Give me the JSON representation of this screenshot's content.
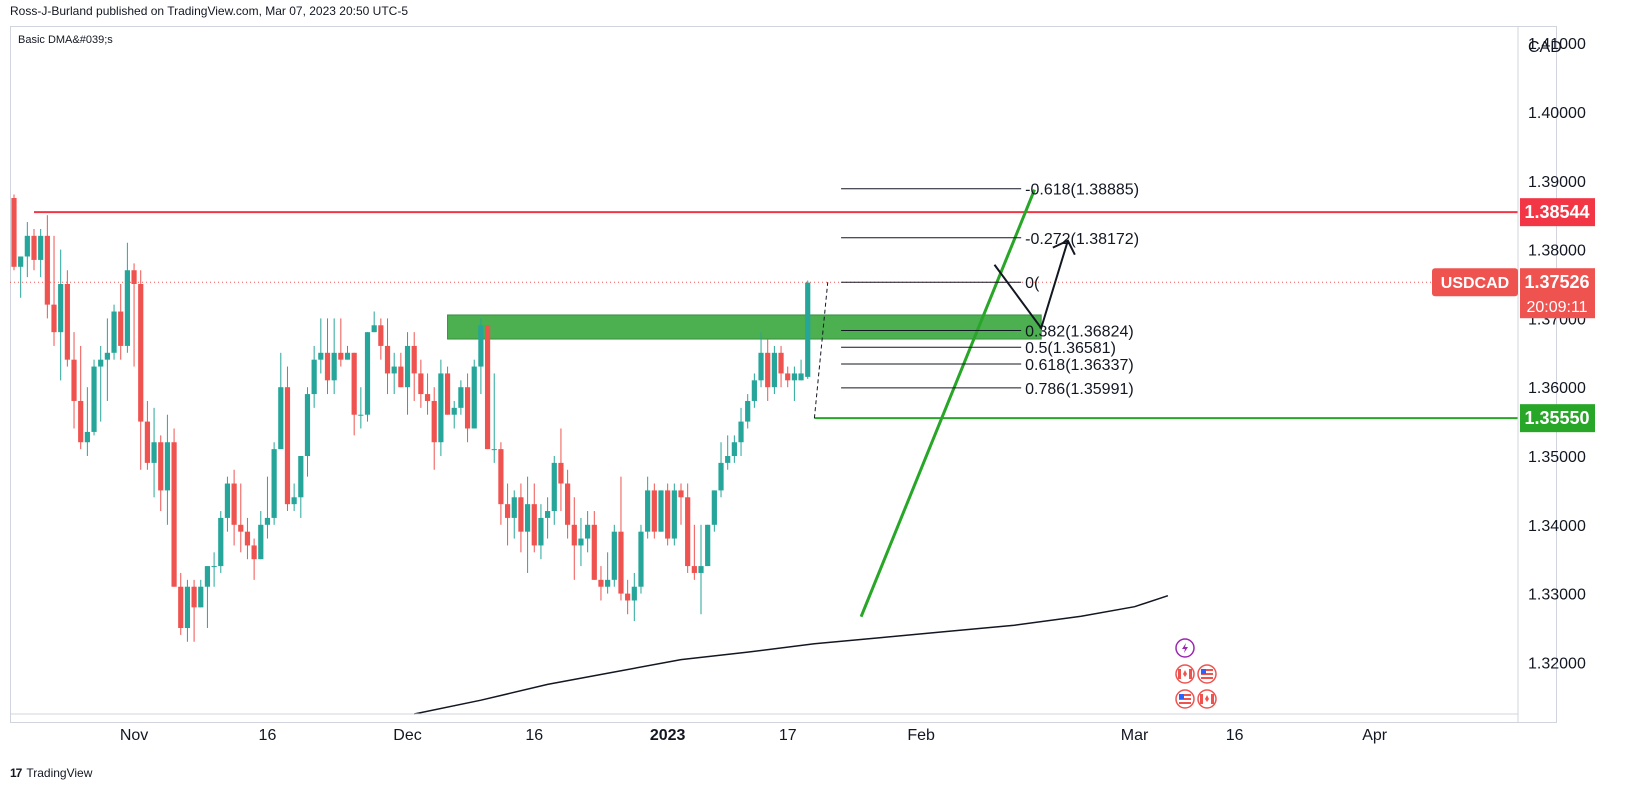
{
  "header": {
    "published_by": "Ross-J-Burland published on TradingView.com, Mar 07, 2023 20:50 UTC-5",
    "indicator": "Basic DMA&#039;s"
  },
  "footer": {
    "brand": "TradingView",
    "logo": "17"
  },
  "colors": {
    "bull": "#26a69a",
    "bear": "#ef5350",
    "resistance": "#f23645",
    "support": "#27a627",
    "zone": "#4caf50",
    "fib": "#131722",
    "dma": "#131722"
  },
  "chart_data": {
    "type": "candlestick",
    "symbol": "USDCAD",
    "currency": "CAD",
    "ylim": [
      1.3125,
      1.4125
    ],
    "y_ticks": [
      "1.41000",
      "1.40000",
      "1.39000",
      "1.38000",
      "1.37000",
      "1.36000",
      "1.35000",
      "1.34000",
      "1.33000",
      "1.32000"
    ],
    "x_ticks": [
      "Nov",
      "16",
      "Dec",
      "16",
      "2023",
      "17",
      "Feb",
      "Mar",
      "16",
      "Apr"
    ],
    "x_tick_index": [
      18,
      38,
      59,
      78,
      98,
      116,
      136,
      168,
      183,
      204
    ],
    "candles": [
      [
        1.3875,
        1.388,
        1.377,
        1.3775
      ],
      [
        1.3775,
        1.379,
        1.373,
        1.379
      ],
      [
        1.379,
        1.384,
        1.376,
        1.382
      ],
      [
        1.382,
        1.383,
        1.377,
        1.3785
      ],
      [
        1.3785,
        1.383,
        1.376,
        1.382
      ],
      [
        1.382,
        1.385,
        1.37,
        1.372
      ],
      [
        1.372,
        1.382,
        1.366,
        1.368
      ],
      [
        1.368,
        1.38,
        1.361,
        1.375
      ],
      [
        1.375,
        1.377,
        1.363,
        1.364
      ],
      [
        1.364,
        1.368,
        1.354,
        1.358
      ],
      [
        1.358,
        1.366,
        1.351,
        1.352
      ],
      [
        1.352,
        1.36,
        1.35,
        1.3535
      ],
      [
        1.3535,
        1.364,
        1.353,
        1.363
      ],
      [
        1.363,
        1.366,
        1.355,
        1.364
      ],
      [
        1.364,
        1.37,
        1.358,
        1.365
      ],
      [
        1.365,
        1.372,
        1.364,
        1.371
      ],
      [
        1.371,
        1.375,
        1.364,
        1.366
      ],
      [
        1.366,
        1.381,
        1.365,
        1.377
      ],
      [
        1.377,
        1.378,
        1.363,
        1.375
      ],
      [
        1.375,
        1.377,
        1.348,
        1.355
      ],
      [
        1.355,
        1.358,
        1.348,
        1.349
      ],
      [
        1.349,
        1.357,
        1.344,
        1.352
      ],
      [
        1.352,
        1.353,
        1.342,
        1.345
      ],
      [
        1.345,
        1.356,
        1.34,
        1.352
      ],
      [
        1.352,
        1.354,
        1.331,
        1.331
      ],
      [
        1.331,
        1.333,
        1.324,
        1.325
      ],
      [
        1.325,
        1.332,
        1.323,
        1.331
      ],
      [
        1.331,
        1.332,
        1.323,
        1.328
      ],
      [
        1.328,
        1.332,
        1.328,
        1.331
      ],
      [
        1.331,
        1.334,
        1.325,
        1.334
      ],
      [
        1.334,
        1.336,
        1.331,
        1.334
      ],
      [
        1.334,
        1.342,
        1.333,
        1.341
      ],
      [
        1.341,
        1.347,
        1.339,
        1.346
      ],
      [
        1.346,
        1.348,
        1.337,
        1.34
      ],
      [
        1.34,
        1.346,
        1.336,
        1.339
      ],
      [
        1.339,
        1.341,
        1.335,
        1.337
      ],
      [
        1.337,
        1.338,
        1.332,
        1.335
      ],
      [
        1.335,
        1.342,
        1.335,
        1.34
      ],
      [
        1.34,
        1.347,
        1.338,
        1.341
      ],
      [
        1.341,
        1.352,
        1.34,
        1.351
      ],
      [
        1.351,
        1.365,
        1.351,
        1.36
      ],
      [
        1.36,
        1.363,
        1.342,
        1.343
      ],
      [
        1.343,
        1.346,
        1.342,
        1.344
      ],
      [
        1.344,
        1.35,
        1.341,
        1.35
      ],
      [
        1.35,
        1.36,
        1.347,
        1.359
      ],
      [
        1.359,
        1.366,
        1.357,
        1.364
      ],
      [
        1.364,
        1.37,
        1.362,
        1.365
      ],
      [
        1.365,
        1.37,
        1.359,
        1.361
      ],
      [
        1.361,
        1.37,
        1.359,
        1.365
      ],
      [
        1.365,
        1.37,
        1.363,
        1.364
      ],
      [
        1.364,
        1.366,
        1.364,
        1.365
      ],
      [
        1.365,
        1.365,
        1.353,
        1.356
      ],
      [
        1.356,
        1.36,
        1.354,
        1.356
      ],
      [
        1.356,
        1.368,
        1.355,
        1.368
      ],
      [
        1.368,
        1.371,
        1.368,
        1.369
      ],
      [
        1.369,
        1.37,
        1.364,
        1.366
      ],
      [
        1.366,
        1.37,
        1.359,
        1.362
      ],
      [
        1.362,
        1.365,
        1.359,
        1.363
      ],
      [
        1.363,
        1.365,
        1.36,
        1.36
      ],
      [
        1.36,
        1.368,
        1.356,
        1.366
      ],
      [
        1.366,
        1.368,
        1.358,
        1.362
      ],
      [
        1.362,
        1.364,
        1.357,
        1.359
      ],
      [
        1.359,
        1.362,
        1.356,
        1.358
      ],
      [
        1.358,
        1.36,
        1.348,
        1.352
      ],
      [
        1.352,
        1.364,
        1.35,
        1.362
      ],
      [
        1.362,
        1.363,
        1.356,
        1.356
      ],
      [
        1.356,
        1.358,
        1.354,
        1.357
      ],
      [
        1.357,
        1.361,
        1.356,
        1.36
      ],
      [
        1.36,
        1.362,
        1.352,
        1.354
      ],
      [
        1.354,
        1.364,
        1.354,
        1.363
      ],
      [
        1.363,
        1.37,
        1.359,
        1.369
      ],
      [
        1.369,
        1.369,
        1.351,
        1.351
      ],
      [
        1.351,
        1.362,
        1.349,
        1.351
      ],
      [
        1.351,
        1.352,
        1.34,
        1.343
      ],
      [
        1.343,
        1.346,
        1.337,
        1.341
      ],
      [
        1.341,
        1.345,
        1.338,
        1.344
      ],
      [
        1.344,
        1.346,
        1.336,
        1.339
      ],
      [
        1.339,
        1.347,
        1.333,
        1.343
      ],
      [
        1.343,
        1.346,
        1.336,
        1.337
      ],
      [
        1.337,
        1.343,
        1.335,
        1.341
      ],
      [
        1.341,
        1.344,
        1.338,
        1.342
      ],
      [
        1.342,
        1.35,
        1.34,
        1.349
      ],
      [
        1.349,
        1.354,
        1.342,
        1.346
      ],
      [
        1.346,
        1.348,
        1.338,
        1.34
      ],
      [
        1.34,
        1.344,
        1.332,
        1.337
      ],
      [
        1.337,
        1.341,
        1.334,
        1.338
      ],
      [
        1.338,
        1.342,
        1.336,
        1.34
      ],
      [
        1.34,
        1.342,
        1.332,
        1.332
      ],
      [
        1.332,
        1.334,
        1.329,
        1.331
      ],
      [
        1.331,
        1.336,
        1.33,
        1.332
      ],
      [
        1.332,
        1.34,
        1.331,
        1.339
      ],
      [
        1.339,
        1.347,
        1.329,
        1.33
      ],
      [
        1.33,
        1.332,
        1.327,
        1.329
      ],
      [
        1.329,
        1.333,
        1.326,
        1.331
      ],
      [
        1.331,
        1.34,
        1.33,
        1.339
      ],
      [
        1.339,
        1.347,
        1.338,
        1.345
      ],
      [
        1.345,
        1.346,
        1.338,
        1.339
      ],
      [
        1.339,
        1.345,
        1.339,
        1.345
      ],
      [
        1.345,
        1.346,
        1.337,
        1.338
      ],
      [
        1.338,
        1.346,
        1.337,
        1.345
      ],
      [
        1.345,
        1.346,
        1.34,
        1.344
      ],
      [
        1.344,
        1.346,
        1.333,
        1.334
      ],
      [
        1.334,
        1.34,
        1.332,
        1.333
      ],
      [
        1.333,
        1.34,
        1.327,
        1.334
      ],
      [
        1.334,
        1.34,
        1.334,
        1.34
      ],
      [
        1.34,
        1.345,
        1.339,
        1.345
      ],
      [
        1.345,
        1.352,
        1.344,
        1.349
      ],
      [
        1.349,
        1.353,
        1.348,
        1.35
      ],
      [
        1.35,
        1.353,
        1.349,
        1.352
      ],
      [
        1.352,
        1.357,
        1.35,
        1.355
      ],
      [
        1.355,
        1.359,
        1.354,
        1.358
      ],
      [
        1.358,
        1.362,
        1.357,
        1.361
      ],
      [
        1.361,
        1.368,
        1.36,
        1.365
      ],
      [
        1.365,
        1.367,
        1.358,
        1.36
      ],
      [
        1.36,
        1.366,
        1.359,
        1.365
      ],
      [
        1.365,
        1.366,
        1.36,
        1.362
      ],
      [
        1.362,
        1.363,
        1.36,
        1.361
      ],
      [
        1.361,
        1.363,
        1.358,
        1.362
      ],
      [
        1.361,
        1.364,
        1.361,
        1.362
      ],
      [
        1.3615,
        1.3755,
        1.3612,
        1.3752
      ]
    ],
    "dma": [
      [
        60,
        1.3125
      ],
      [
        70,
        1.3145
      ],
      [
        80,
        1.3168
      ],
      [
        90,
        1.3186
      ],
      [
        100,
        1.3204
      ],
      [
        110,
        1.3215
      ],
      [
        120,
        1.3227
      ],
      [
        130,
        1.3236
      ],
      [
        140,
        1.3245
      ],
      [
        150,
        1.3254
      ],
      [
        160,
        1.3267
      ],
      [
        168,
        1.3281
      ],
      [
        173,
        1.3297
      ]
    ],
    "resistance": {
      "price": 1.38544,
      "label": "1.38544",
      "start_index": 3
    },
    "support": {
      "price": 1.3555,
      "label": "1.35550",
      "start_index": 120
    },
    "zone": {
      "high": 1.3705,
      "low": 1.367,
      "start_index": 65,
      "end_index": 154
    },
    "trendline": [
      [
        127,
        1.32665
      ],
      [
        153,
        1.3887
      ]
    ],
    "projection_path": [
      [
        147,
        1.3778
      ],
      [
        154,
        1.3686
      ],
      [
        158,
        1.3813
      ]
    ],
    "fib_connector": [
      [
        120,
        1.3555
      ],
      [
        122,
        1.37526
      ]
    ],
    "fibonacci": {
      "start_index": 124,
      "end_index": 151,
      "levels": [
        {
          "label": "-0.618(1.38885)",
          "price": 1.38885
        },
        {
          "label": "-0.272(1.38172)",
          "price": 1.38172
        },
        {
          "label": "0(",
          "price": 1.37526
        },
        {
          "label": "0.382(1.36824)",
          "price": 1.36824
        },
        {
          "label": "0.5(1.36581)",
          "price": 1.36581
        },
        {
          "label": "0.618(1.36337)",
          "price": 1.36337
        },
        {
          "label": "0.786(1.35991)",
          "price": 1.35991
        }
      ]
    },
    "current": {
      "price": 1.37526,
      "symbol": "USDCAD",
      "price_label": "1.37526",
      "countdown": "20:09:11"
    }
  }
}
